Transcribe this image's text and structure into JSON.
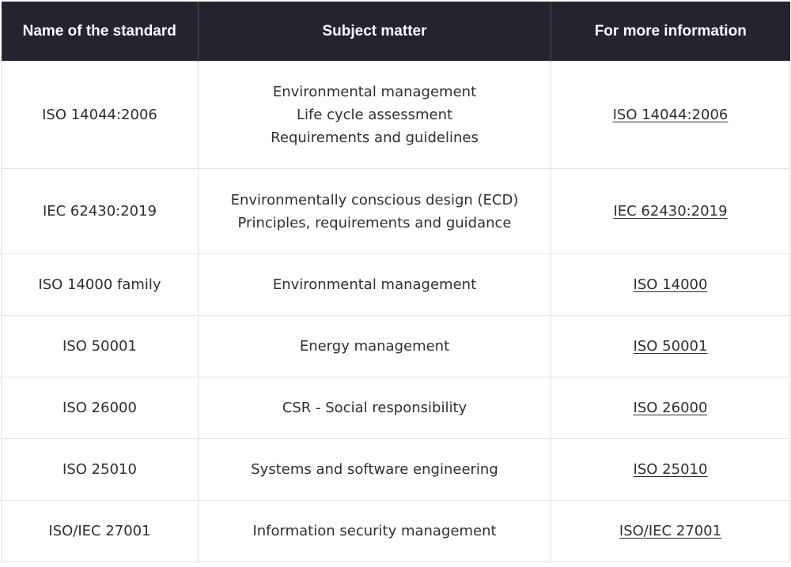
{
  "table": {
    "headers": [
      "Name of the standard",
      "Subject matter",
      "For more information"
    ],
    "rows": [
      {
        "name": "ISO 14044:2006",
        "subject": [
          "Environmental management",
          "Life cycle assessment",
          "Requirements and guidelines"
        ],
        "link": "ISO 14044:2006"
      },
      {
        "name": "IEC 62430:2019",
        "subject": [
          "Environmentally conscious design (ECD)",
          "Principles, requirements and guidance"
        ],
        "link": "IEC 62430:2019"
      },
      {
        "name": "ISO 14000 family",
        "subject": [
          "Environmental management"
        ],
        "link": "ISO 14000"
      },
      {
        "name": "ISO 50001",
        "subject": [
          "Energy management"
        ],
        "link": "ISO 50001"
      },
      {
        "name": "ISO 26000",
        "subject": [
          "CSR - Social responsibility"
        ],
        "link": "ISO 26000"
      },
      {
        "name": "ISO 25010",
        "subject": [
          "Systems and software engineering"
        ],
        "link": "ISO 25010"
      },
      {
        "name": "ISO/IEC 27001",
        "subject": [
          "Information security management"
        ],
        "link": "ISO/IEC 27001"
      }
    ]
  },
  "colors": {
    "header_background": "#23242e",
    "header_text": "#ffffff",
    "body_text": "#2f2f2f",
    "grid_line": "#e3e3e3"
  }
}
